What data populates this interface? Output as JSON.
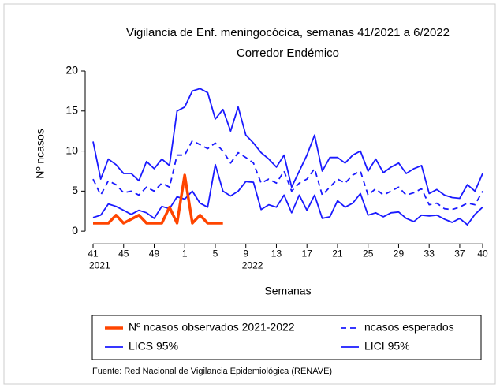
{
  "chart_data": {
    "type": "line",
    "title": "Vigilancia de Enf. meningocócica, semanas 41/2021 a 6/2022",
    "subtitle": "Corredor Endémico",
    "x_label": "Semanas",
    "y_label": "Nº ncasos",
    "source": "Fuente: Red Nacional de Vigilancia Epidemiológica (RENAVE)",
    "categories": [
      "41",
      null,
      null,
      null,
      "45",
      null,
      null,
      null,
      "49",
      null,
      null,
      null,
      "1",
      null,
      null,
      null,
      "5",
      null,
      null,
      null,
      "9",
      null,
      null,
      null,
      "13",
      null,
      null,
      null,
      "17",
      null,
      null,
      null,
      "21",
      null,
      null,
      null,
      "25",
      null,
      null,
      null,
      "29",
      null,
      null,
      null,
      "33",
      null,
      null,
      null,
      "37",
      null,
      null,
      "40"
    ],
    "year_labels": [
      "2021",
      null,
      null,
      null,
      null,
      null,
      null,
      null,
      null,
      null,
      null,
      null,
      null,
      null,
      null,
      null,
      null,
      null,
      null,
      null,
      "2022",
      null,
      null,
      null,
      null,
      null,
      null,
      null,
      null,
      null,
      null,
      null,
      null,
      null,
      null,
      null,
      null,
      null,
      null,
      null,
      null,
      null,
      null,
      null,
      null,
      null,
      null,
      null,
      null,
      null,
      null,
      null
    ],
    "ylim": [
      -1,
      20
    ],
    "yticks": [
      0,
      5,
      10,
      15,
      20
    ],
    "legend": "bottom",
    "series": [
      {
        "name": "Nº ncasos observados 2021-2022",
        "color": "#ff4500",
        "line_width": 3.5,
        "dashed": false,
        "values": [
          1,
          1,
          1,
          2,
          1,
          1.5,
          2,
          1,
          1,
          1,
          3,
          1,
          7,
          1,
          2,
          1,
          1,
          1,
          null,
          null,
          null,
          null,
          null,
          null,
          null,
          null,
          null,
          null,
          null,
          null,
          null,
          null,
          null,
          null,
          null,
          null,
          null,
          null,
          null,
          null,
          null,
          null,
          null,
          null,
          null,
          null,
          null,
          null,
          null,
          null,
          null,
          null
        ]
      },
      {
        "name": "ncasos esperados",
        "color": "#1a1aff",
        "line_width": 1.8,
        "dashed": true,
        "values": [
          6.5,
          4.5,
          6.3,
          5.8,
          4.8,
          5,
          4.5,
          5.5,
          5,
          6,
          5.5,
          9.5,
          9.5,
          11.3,
          10.8,
          10.3,
          11,
          10,
          8.5,
          9.8,
          9.2,
          8.5,
          6,
          6.5,
          6,
          7.5,
          5,
          6,
          6.5,
          7.8,
          4.5,
          5.5,
          6.5,
          6,
          7,
          7.5,
          4.5,
          5.3,
          4.5,
          5,
          5.5,
          4.5,
          4.8,
          5.3,
          3.3,
          3.5,
          2.8,
          2.7,
          3,
          3.5,
          3.3,
          5
        ]
      },
      {
        "name": "LICS 95%",
        "color": "#1a1aff",
        "line_width": 1.8,
        "dashed": false,
        "values": [
          11.2,
          6.5,
          9,
          8.3,
          7.2,
          7.2,
          6.3,
          8.7,
          7.8,
          9,
          8.2,
          15,
          15.5,
          17.5,
          17.8,
          17.3,
          14,
          15.2,
          12.5,
          15.5,
          12,
          11,
          9.8,
          9,
          8,
          9.5,
          5.5,
          7.5,
          9.5,
          12,
          7.5,
          9.2,
          9.2,
          8.5,
          9.5,
          10,
          7.5,
          9,
          7.3,
          8,
          8.5,
          7.2,
          7.8,
          8.2,
          4.7,
          5.2,
          4.5,
          4.2,
          4.1,
          5.8,
          5,
          7.2
        ]
      },
      {
        "name": "LICI 95%",
        "color": "#1a1aff",
        "line_width": 1.8,
        "dashed": false,
        "values": [
          1.7,
          2,
          3.4,
          3.1,
          2.6,
          2.1,
          2.6,
          2.3,
          1.6,
          3.1,
          2.8,
          4.3,
          4,
          5,
          3.5,
          3,
          8.3,
          5,
          4.4,
          5,
          6.2,
          6.1,
          2.7,
          3.3,
          3,
          4.5,
          2.3,
          4.5,
          2.6,
          4.5,
          1.6,
          1.8,
          3.8,
          3,
          3.5,
          4.7,
          2,
          2.3,
          1.8,
          2.3,
          2.4,
          1.6,
          1.2,
          2,
          1.9,
          2,
          1.5,
          1.1,
          1.6,
          0.8,
          2.1,
          3
        ]
      }
    ]
  }
}
